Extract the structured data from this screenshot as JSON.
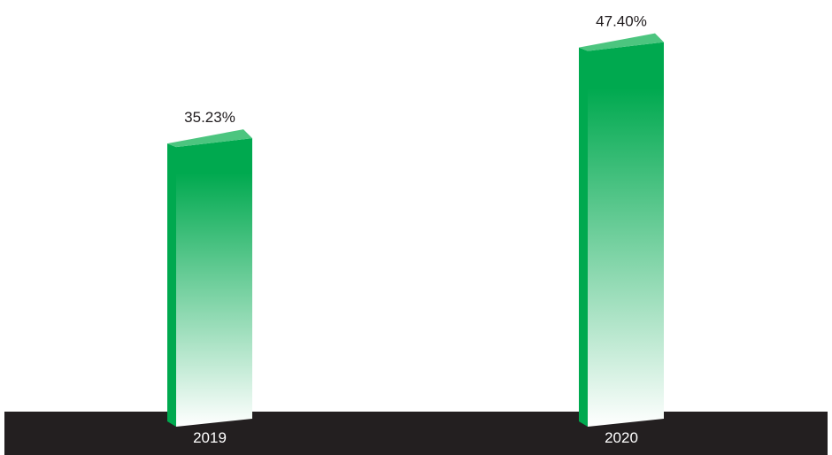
{
  "colors": {
    "bar_top": "#00a94f",
    "bar_bottom": "#ffffff",
    "bar_side": "#00a94f",
    "bar_cap": "#4cc57f",
    "floor": "#231f20",
    "value_text": "#1f1b1d",
    "category_text": "#ffffff"
  },
  "chart_data": {
    "type": "bar",
    "categories": [
      "2019",
      "2020"
    ],
    "values": [
      35.23,
      47.4
    ],
    "value_labels": [
      "35.23%",
      "47.40%"
    ],
    "ylim": [
      0,
      50
    ],
    "grid": false,
    "legend": "none"
  }
}
